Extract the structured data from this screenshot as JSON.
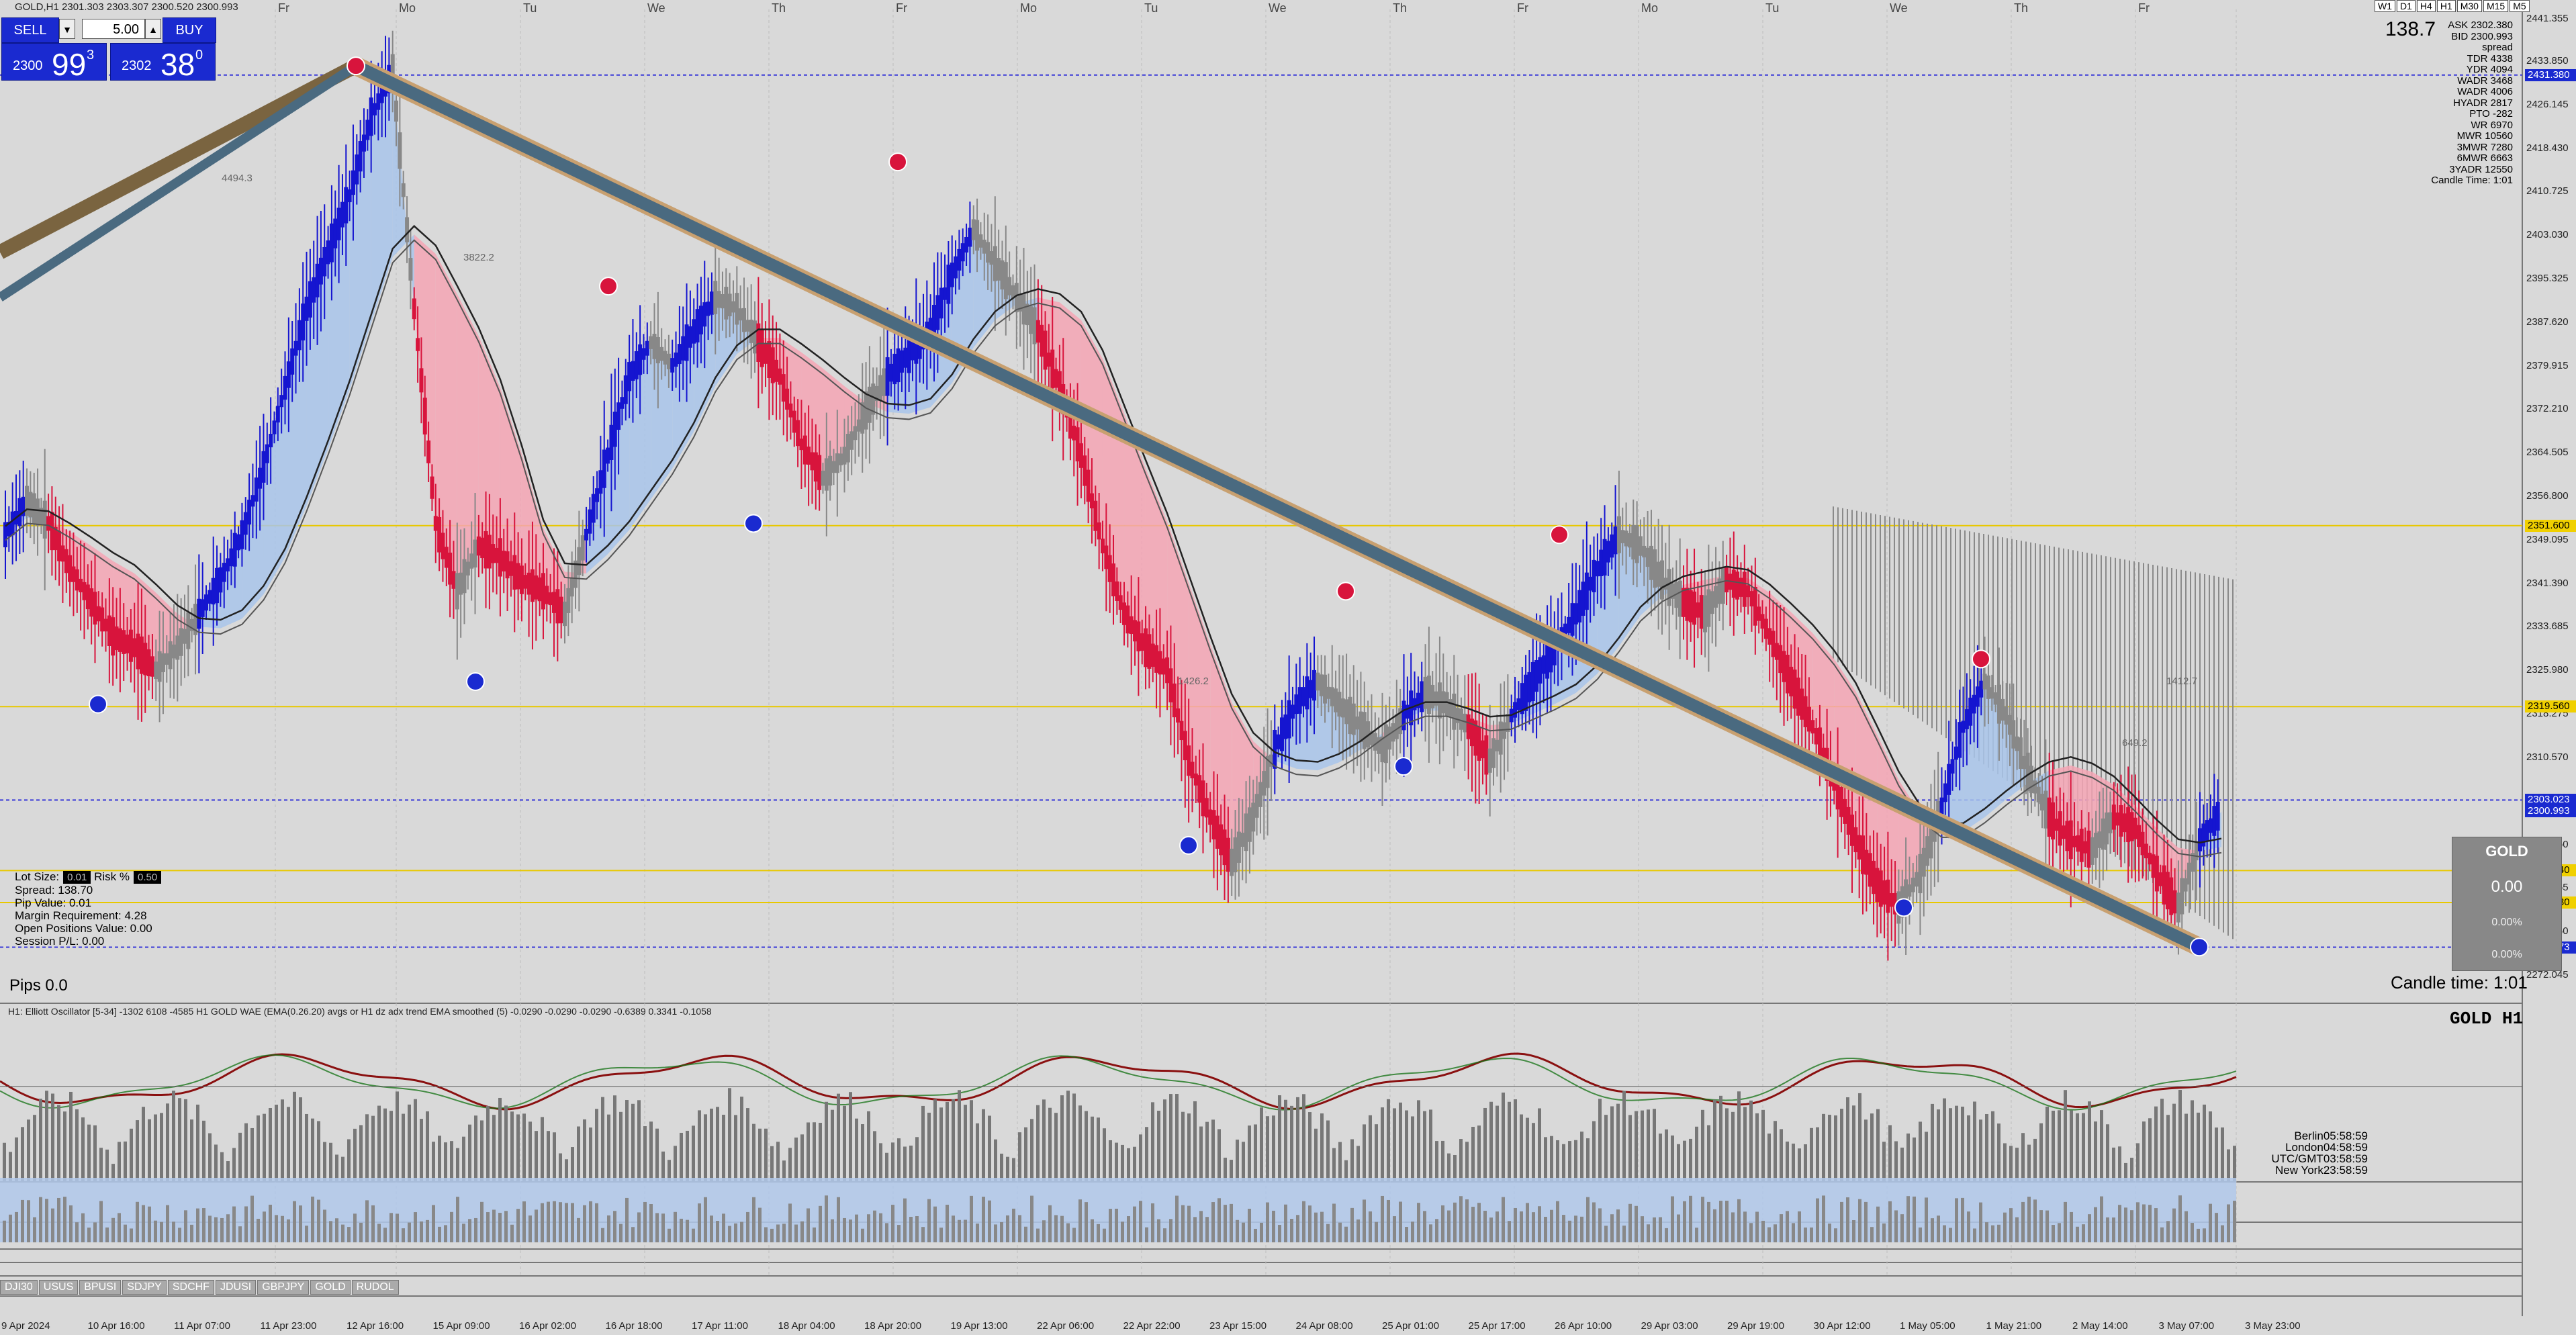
{
  "symbol_header": "GOLD,H1  2301.303 2303.307 2300.520 2300.993",
  "trade_panel": {
    "sell_label": "SELL",
    "buy_label": "BUY",
    "lot_value": "5.00",
    "sell_price_small": "2300",
    "sell_price_big": "99",
    "sell_price_sup": "3",
    "buy_price_small": "2302",
    "buy_price_big": "38",
    "buy_price_sup": "0"
  },
  "timeframes": [
    "W1",
    "D1",
    "H4",
    "H1",
    "M30",
    "M15",
    "M5"
  ],
  "day_labels": [
    "Fr",
    "Mo",
    "Tu",
    "We",
    "Th",
    "Fr",
    "Mo",
    "Tu",
    "We",
    "Th",
    "Fr",
    "Mo",
    "Tu",
    "We",
    "Th",
    "Fr"
  ],
  "x_labels": [
    "9 Apr 2024",
    "10 Apr 16:00",
    "11 Apr 07:00",
    "11 Apr 23:00",
    "12 Apr 16:00",
    "15 Apr 09:00",
    "16 Apr 02:00",
    "16 Apr 18:00",
    "17 Apr 11:00",
    "18 Apr 04:00",
    "18 Apr 20:00",
    "19 Apr 13:00",
    "22 Apr 06:00",
    "22 Apr 22:00",
    "23 Apr 15:00",
    "24 Apr 08:00",
    "25 Apr 01:00",
    "25 Apr 17:00",
    "26 Apr 10:00",
    "29 Apr 03:00",
    "29 Apr 19:00",
    "30 Apr 12:00",
    "1 May 05:00",
    "1 May 21:00",
    "2 May 14:00",
    "3 May 07:00",
    "3 May 23:00"
  ],
  "y_labels": [
    "2441.355",
    "2433.850",
    "2426.145",
    "2418.430",
    "2410.725",
    "2403.030",
    "2395.325",
    "2387.620",
    "2379.915",
    "2372.210",
    "2364.505",
    "2356.800",
    "2349.095",
    "2341.390",
    "2333.685",
    "2325.980",
    "2318.275",
    "2310.570",
    "2302.865",
    "2295.160",
    "2287.455",
    "2279.750",
    "2272.045"
  ],
  "price_tags": [
    {
      "text": "2431.380",
      "color": "#1a2ad0",
      "fg": "#fff"
    },
    {
      "text": "2351.600",
      "color": "#f0d000",
      "fg": "#000"
    },
    {
      "text": "2319.560",
      "color": "#f0d000",
      "fg": "#000"
    },
    {
      "text": "2303.023",
      "color": "#1a2ad0",
      "fg": "#fff"
    },
    {
      "text": "2300.993",
      "color": "#1a2ad0",
      "fg": "#fff"
    },
    {
      "text": "2290.540",
      "color": "#f0d000",
      "fg": "#000"
    },
    {
      "text": "2284.880",
      "color": "#f0d000",
      "fg": "#000"
    },
    {
      "text": "2276.973",
      "color": "#1a2ad0",
      "fg": "#fff"
    }
  ],
  "right_panel": {
    "spread_big": "138.7",
    "lines": [
      "ASK 2302.380",
      "BID 2300.993",
      "spread",
      "TDR 4338",
      "YDR 4094",
      "WADR 3468",
      "WADR 4006",
      "HYADR 2817",
      "PTO -282",
      "WR 6970",
      "MWR 10560",
      "3MWR 7280",
      "6MWR 6663",
      "3YADR 12550",
      "Candle Time: 1:01"
    ]
  },
  "account_info": {
    "lot_size_label": "Lot Size:",
    "lot_size_value": "0.01",
    "risk_label": "Risk %",
    "risk_value": "0.50",
    "spread": "Spread: 138.70",
    "pip_value": "Pip Value: 0.01",
    "margin": "Margin Requirement: 4.28",
    "open_positions": "Open Positions Value: 0.00",
    "session_pl": "Session P/L: 0.00"
  },
  "pips": "Pips 0.0",
  "candle_time": "Candle time:  1:01",
  "gold_box": {
    "title": "GOLD",
    "value": "0.00",
    "pct1": "0.00%",
    "pct2": "0.00%"
  },
  "osc_title": "H1: Elliott Oscillator [5-34]  -1302 6108 -4585  H1 GOLD WAE (EMA(0.26.20) avgs or H1 dz adx trend EMA smoothed (5) -0.0290 -0.0290 -0.0290 -0.6389 0.3341 -0.1058",
  "gold_h1": "GOLD  H1",
  "clocks": [
    "Berlin05:58:59",
    "London04:58:59",
    "UTC/GMT03:58:59",
    "New York23:58:59"
  ],
  "annotations": [
    "4494.3",
    "3822.2",
    "1426.2",
    "1412.7",
    "649.2"
  ],
  "tabs": [
    "DJI30",
    "USUS",
    "BPUSI",
    "SDJPY",
    "SDCHF",
    "JDUSI",
    "GBPJPY",
    "GOLD",
    "RUDOL"
  ],
  "chart_data": {
    "type": "candlestick",
    "ylim": [
      2268.0,
      2443.0
    ],
    "price_series": [
      2350,
      2356,
      2352,
      2344,
      2338,
      2332,
      2330,
      2326,
      2330,
      2336,
      2342,
      2350,
      2362,
      2376,
      2390,
      2400,
      2410,
      2424,
      2432,
      2390,
      2352,
      2340,
      2348,
      2346,
      2342,
      2340,
      2336,
      2350,
      2364,
      2378,
      2384,
      2380,
      2386,
      2392,
      2390,
      2384,
      2378,
      2366,
      2360,
      2364,
      2372,
      2378,
      2382,
      2386,
      2396,
      2404,
      2398,
      2392,
      2386,
      2376,
      2364,
      2348,
      2336,
      2330,
      2326,
      2310,
      2300,
      2292,
      2300,
      2312,
      2320,
      2324,
      2320,
      2316,
      2312,
      2318,
      2322,
      2320,
      2316,
      2310,
      2318,
      2324,
      2330,
      2336,
      2344,
      2350,
      2348,
      2342,
      2338,
      2336,
      2342,
      2340,
      2332,
      2324,
      2316,
      2306,
      2296,
      2288,
      2284,
      2290,
      2302,
      2316,
      2324,
      2318,
      2308,
      2300,
      2296,
      2294,
      2300,
      2298,
      2290,
      2284,
      2296,
      2301
    ]
  }
}
